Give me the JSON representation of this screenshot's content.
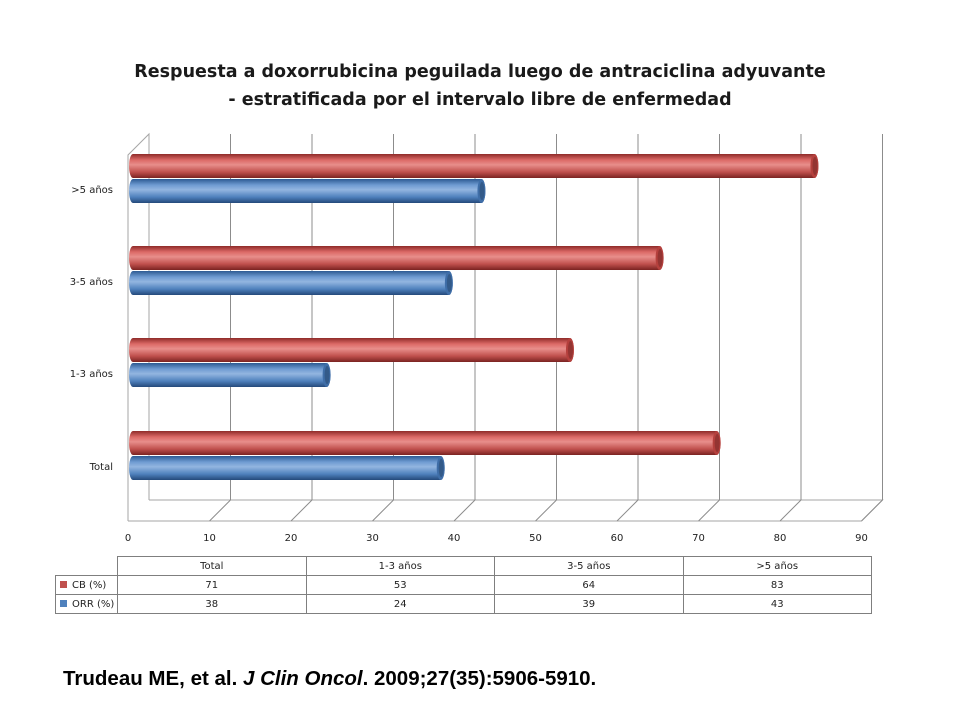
{
  "chart_data": {
    "type": "bar",
    "orientation": "horizontal",
    "style": "3d-cylinder",
    "title_lines": [
      "Respuesta a doxorrubicina peguilada luego de antraciclina adyuvante",
      "- estratificada por el intervalo libre de enfermedad"
    ],
    "categories": [
      "Total",
      "1-3 años",
      "3-5 años",
      ">5 años"
    ],
    "series": [
      {
        "name": "CB (%)",
        "values": [
          71,
          53,
          64,
          83
        ],
        "color": "#c0504d"
      },
      {
        "name": "ORR (%)",
        "values": [
          38,
          24,
          39,
          43
        ],
        "color": "#4f81bd"
      }
    ],
    "xlim": [
      0,
      90
    ],
    "xticks": [
      "0",
      "10",
      "20",
      "30",
      "40",
      "50",
      "60",
      "70",
      "80",
      "90"
    ],
    "grid": true,
    "legend": "data-table-below"
  },
  "citation": {
    "authors": "Trudeau ME, et al. ",
    "journal": "J Clin Oncol",
    "details": ". 2009;27(35):5906-5910."
  }
}
